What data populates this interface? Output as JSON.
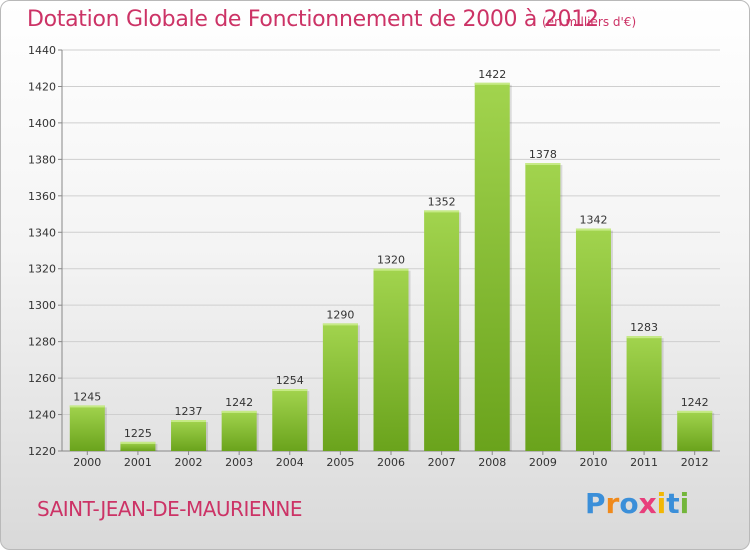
{
  "header": {
    "title": "Dotation Globale de Fonctionnement de 2000 à 2012",
    "subtitle": "(en milliers d'€)"
  },
  "footer": {
    "city": "SAINT-JEAN-DE-MAURIENNE",
    "logo_text": "Proxiti"
  },
  "colors": {
    "title": "#cc3366",
    "bar_light": "#a2d44e",
    "bar_dark": "#6aa31c",
    "logo_p": "#3b8fd9",
    "logo_r": "#f08a1c",
    "logo_o": "#3b8fd9",
    "logo_x": "#e83e7b",
    "logo_i": "#f2b705",
    "logo_t": "#3b8fd9",
    "logo_i2": "#73b63b"
  },
  "chart_data": {
    "type": "bar",
    "title": "Dotation Globale de Fonctionnement de 2000 à 2012",
    "subtitle": "(en milliers d'€)",
    "categories": [
      "2000",
      "2001",
      "2002",
      "2003",
      "2004",
      "2005",
      "2006",
      "2007",
      "2008",
      "2009",
      "2010",
      "2011",
      "2012"
    ],
    "values": [
      1245,
      1225,
      1237,
      1242,
      1254,
      1290,
      1320,
      1352,
      1422,
      1378,
      1342,
      1283,
      1242
    ],
    "ylim": [
      1220,
      1440
    ],
    "yticks": [
      1220,
      1240,
      1260,
      1280,
      1300,
      1320,
      1340,
      1360,
      1380,
      1400,
      1420,
      1440
    ],
    "grid": true,
    "data_labels": true
  }
}
